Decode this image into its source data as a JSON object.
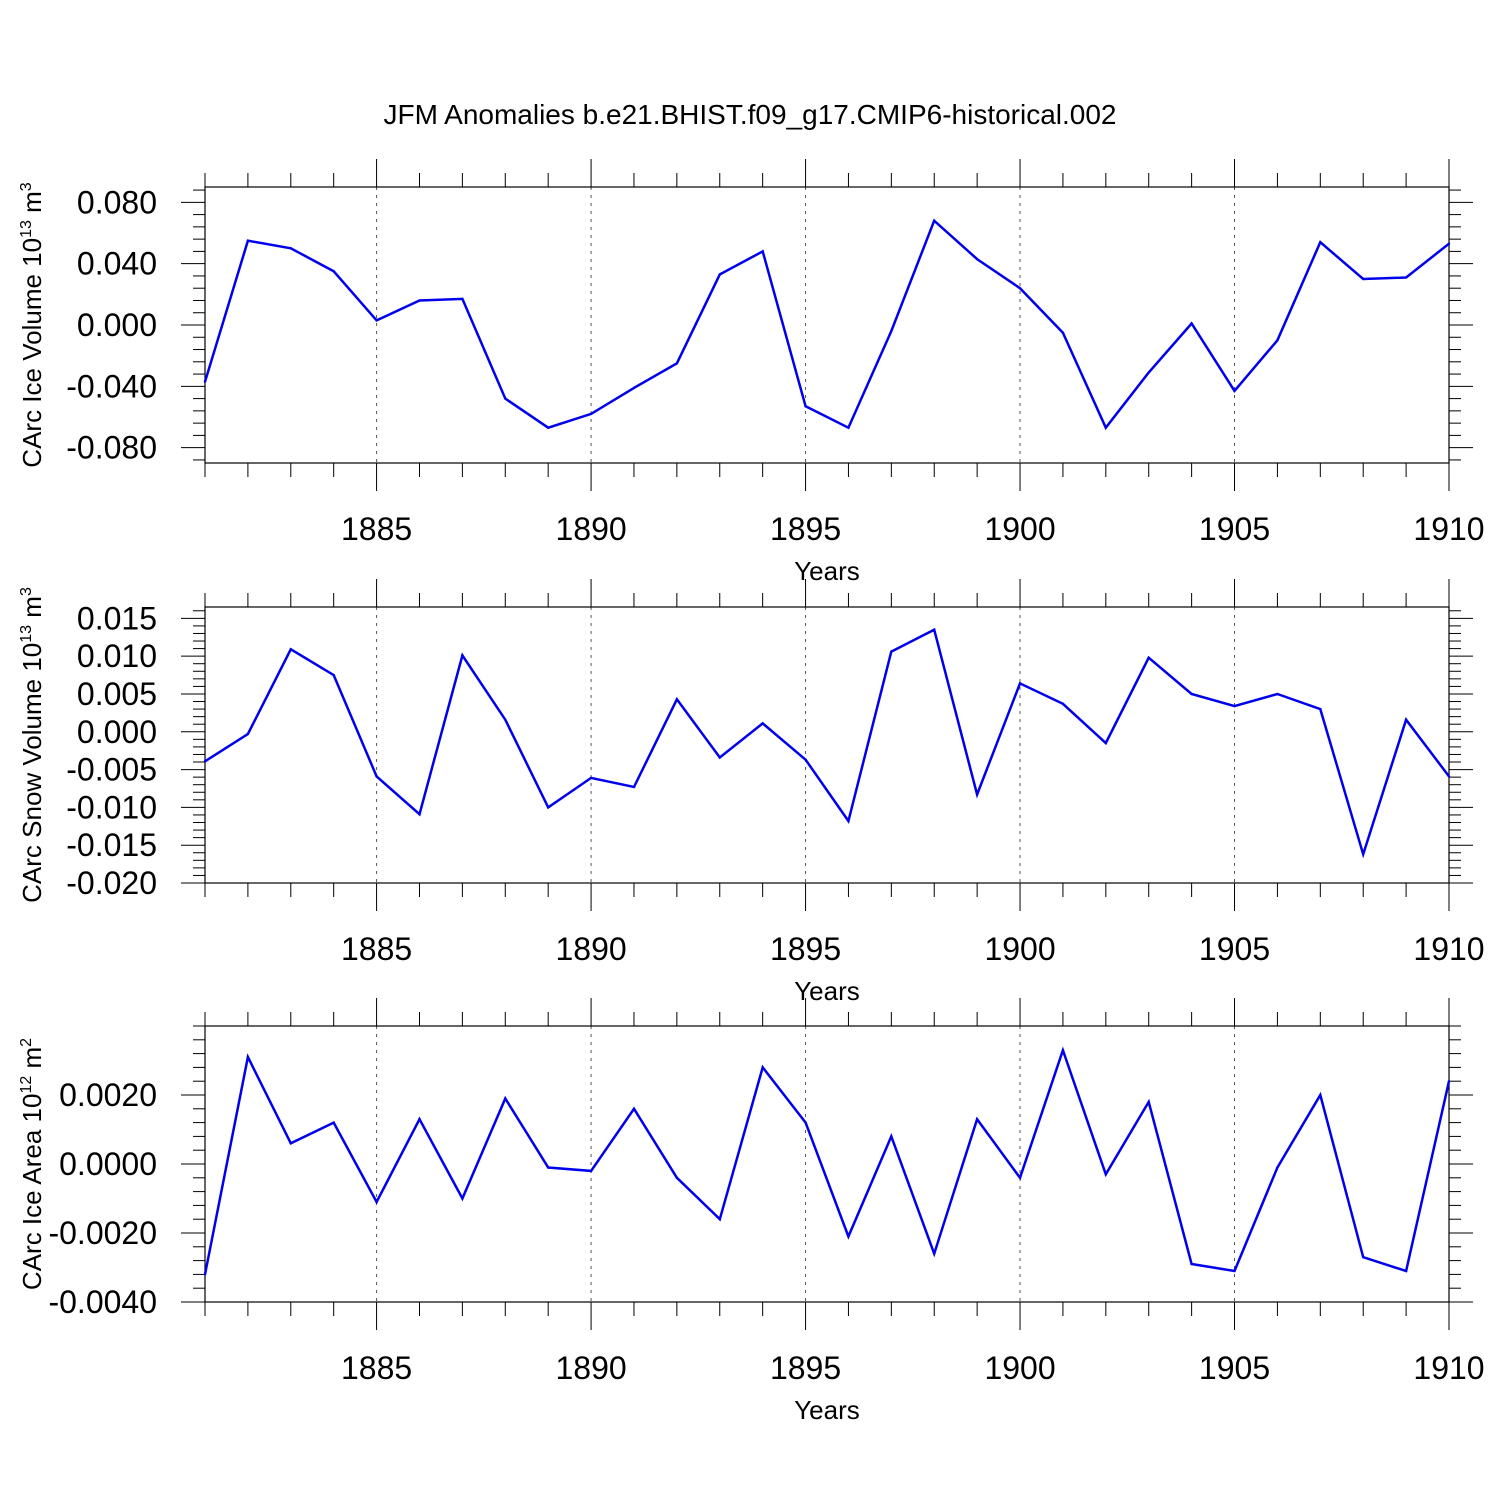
{
  "title": "JFM Anomalies b.e21.BHIST.f09_g17.CMIP6-historical.002",
  "line_color": "#0000ee",
  "chart_data": [
    {
      "type": "line",
      "ylabel_main": "CArc Ice Volume 10",
      "ylabel_sup": "13",
      "ylabel_unit": " m",
      "ylabel_unit_sup": "3",
      "xlabel": "Years",
      "xlim": [
        1881,
        1910
      ],
      "ylim": [
        -0.09,
        0.09
      ],
      "xticks": [
        1885,
        1890,
        1895,
        1900,
        1905,
        1910
      ],
      "yticks": [
        -0.08,
        -0.04,
        0.0,
        0.04,
        0.08
      ],
      "ytick_labels": [
        "-0.080",
        "-0.040",
        "0.000",
        "0.040",
        "0.080"
      ],
      "x": [
        1881,
        1882,
        1883,
        1884,
        1885,
        1886,
        1887,
        1888,
        1889,
        1890,
        1891,
        1892,
        1893,
        1894,
        1895,
        1896,
        1897,
        1898,
        1899,
        1900,
        1901,
        1902,
        1903,
        1904,
        1905,
        1906,
        1907,
        1908,
        1909,
        1910
      ],
      "values": [
        -0.037,
        0.055,
        0.05,
        0.035,
        0.003,
        0.016,
        0.017,
        -0.048,
        -0.067,
        -0.058,
        -0.041,
        -0.025,
        0.033,
        0.048,
        -0.053,
        -0.067,
        -0.004,
        0.068,
        0.043,
        0.024,
        -0.005,
        -0.067,
        -0.031,
        0.001,
        -0.043,
        -0.01,
        0.054,
        0.03,
        0.031,
        0.053
      ]
    },
    {
      "type": "line",
      "ylabel_main": "CArc Snow Volume 10",
      "ylabel_sup": "13",
      "ylabel_unit": " m",
      "ylabel_unit_sup": "3",
      "xlabel": "Years",
      "xlim": [
        1881,
        1910
      ],
      "ylim": [
        -0.02,
        0.0165
      ],
      "xticks": [
        1885,
        1890,
        1895,
        1900,
        1905,
        1910
      ],
      "yticks": [
        -0.02,
        -0.015,
        -0.01,
        -0.005,
        0.0,
        0.005,
        0.01,
        0.015
      ],
      "ytick_labels": [
        "-0.020",
        "-0.015",
        "-0.010",
        "-0.005",
        "0.000",
        "0.005",
        "0.010",
        "0.015"
      ],
      "x": [
        1881,
        1882,
        1883,
        1884,
        1885,
        1886,
        1887,
        1888,
        1889,
        1890,
        1891,
        1892,
        1893,
        1894,
        1895,
        1896,
        1897,
        1898,
        1899,
        1900,
        1901,
        1902,
        1903,
        1904,
        1905,
        1906,
        1907,
        1908,
        1909,
        1910
      ],
      "values": [
        -0.0039,
        -0.0003,
        0.0109,
        0.0075,
        -0.0059,
        -0.0109,
        0.0101,
        0.0016,
        -0.01,
        -0.0061,
        -0.0073,
        0.0043,
        -0.0034,
        0.0011,
        -0.0037,
        -0.0118,
        0.0106,
        0.0135,
        -0.0083,
        0.0064,
        0.0037,
        -0.0015,
        0.0098,
        0.005,
        0.0034,
        0.005,
        0.003,
        -0.0162,
        0.0016,
        -0.0059
      ]
    },
    {
      "type": "line",
      "ylabel_main": "CArc Ice Area 10",
      "ylabel_sup": "12",
      "ylabel_unit": " m",
      "ylabel_unit_sup": "2",
      "xlabel": "Years",
      "xlim": [
        1881,
        1910
      ],
      "ylim": [
        -0.004,
        0.004
      ],
      "xticks": [
        1885,
        1890,
        1895,
        1900,
        1905,
        1910
      ],
      "yticks": [
        -0.004,
        -0.002,
        0.0,
        0.002
      ],
      "ytick_labels": [
        "-0.0040",
        "-0.0020",
        "0.0000",
        "0.0020"
      ],
      "x": [
        1881,
        1882,
        1883,
        1884,
        1885,
        1886,
        1887,
        1888,
        1889,
        1890,
        1891,
        1892,
        1893,
        1894,
        1895,
        1896,
        1897,
        1898,
        1899,
        1900,
        1901,
        1902,
        1903,
        1904,
        1905,
        1906,
        1907,
        1908,
        1909,
        1910
      ],
      "values": [
        -0.0032,
        0.0031,
        0.0006,
        0.0012,
        -0.0011,
        0.0013,
        -0.001,
        0.0019,
        -0.0001,
        -0.0002,
        0.0016,
        -0.0004,
        -0.0016,
        0.0028,
        0.0012,
        -0.0021,
        0.0008,
        -0.0026,
        0.0013,
        -0.0004,
        0.0033,
        -0.0003,
        0.0018,
        -0.0029,
        -0.0031,
        -0.0001,
        0.002,
        -0.0027,
        -0.0031,
        0.0024
      ]
    }
  ]
}
